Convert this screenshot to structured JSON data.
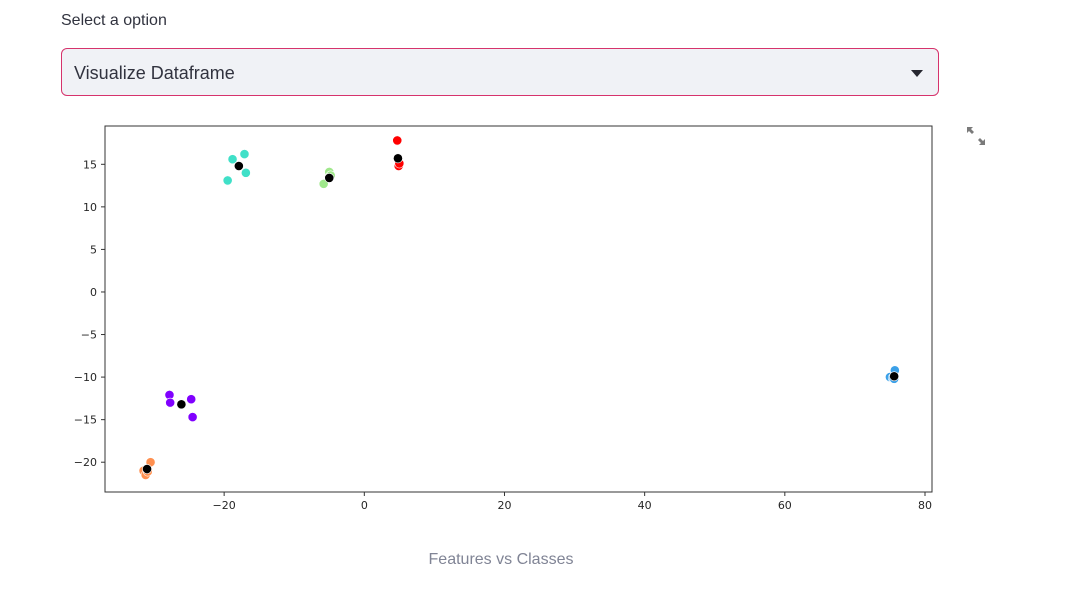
{
  "select": {
    "label": "Select a option",
    "value": "Visualize Dataframe"
  },
  "caption": "Features vs Classes",
  "icons": {
    "dropdown": "chevron-down-icon",
    "fullscreen": "fullscreen-expand-icon"
  },
  "colors": {
    "select_border": "#d6336c",
    "select_bg": "#f0f2f6"
  },
  "chart_data": {
    "type": "scatter",
    "title": "",
    "xlabel": "",
    "ylabel": "",
    "xlim": [
      -37,
      81
    ],
    "ylim": [
      -23.5,
      19.5
    ],
    "xticks": [
      -20,
      0,
      20,
      40,
      60,
      80
    ],
    "yticks": [
      -20,
      -15,
      -10,
      -5,
      0,
      5,
      10,
      15
    ],
    "xtick_labels": [
      "−20",
      "0",
      "20",
      "40",
      "60",
      "80"
    ],
    "ytick_labels": [
      "−20",
      "−15",
      "−10",
      "−5",
      "0",
      "5",
      "10",
      "15"
    ],
    "grid": false,
    "legend": "none",
    "series": [
      {
        "color": "#40e0c8",
        "points": [
          [
            -19.5,
            13.1
          ],
          [
            -18.8,
            15.6
          ],
          [
            -17.1,
            16.2
          ],
          [
            -16.9,
            14.0
          ]
        ]
      },
      {
        "color": "#a0e88c",
        "points": [
          [
            -5.8,
            12.7
          ],
          [
            -5.0,
            14.1
          ],
          [
            -4.8,
            13.7
          ]
        ]
      },
      {
        "color": "#ff0000",
        "points": [
          [
            4.7,
            17.8
          ],
          [
            4.9,
            14.8
          ],
          [
            5.0,
            15.1
          ]
        ]
      },
      {
        "color": "#3aa0e8",
        "points": [
          [
            75.0,
            -10.0
          ],
          [
            75.4,
            -10.1
          ],
          [
            75.7,
            -9.2
          ],
          [
            75.6,
            -10.2
          ]
        ]
      },
      {
        "color": "#8000ff",
        "points": [
          [
            -27.8,
            -12.1
          ],
          [
            -27.7,
            -13.0
          ],
          [
            -24.7,
            -12.6
          ],
          [
            -24.5,
            -14.7
          ]
        ]
      },
      {
        "color": "#ff9050",
        "points": [
          [
            -31.5,
            -21.0
          ],
          [
            -31.2,
            -21.5
          ],
          [
            -30.5,
            -20.0
          ],
          [
            -30.9,
            -21.1
          ]
        ]
      },
      {
        "color": "#000000",
        "points": [
          [
            -17.9,
            14.8
          ],
          [
            -5.0,
            13.4
          ],
          [
            4.8,
            15.7
          ],
          [
            75.6,
            -9.9
          ],
          [
            -26.1,
            -13.2
          ],
          [
            -31.0,
            -20.8
          ]
        ]
      }
    ]
  }
}
